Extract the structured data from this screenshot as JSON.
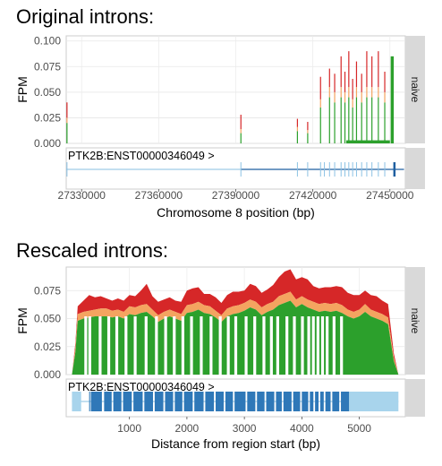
{
  "chart_data": [
    {
      "type": "area",
      "title": "Original introns:",
      "ylabel": "FPM",
      "xlabel": "Chromosome 8 position (bp)",
      "facet_label": "naive",
      "transcript_label": "PTK2B:ENST00000346049 >",
      "xlim": [
        27324000,
        27456000
      ],
      "ylim": [
        0,
        0.105
      ],
      "x_ticks": [
        27330000,
        27360000,
        27390000,
        27420000,
        27450000
      ],
      "x_tick_labels": [
        "27330000",
        "27360000",
        "27390000",
        "27420000",
        "27450000"
      ],
      "y_ticks": [
        0,
        0.025,
        0.05,
        0.075,
        0.1
      ],
      "y_tick_labels": [
        "0.000",
        "0.025",
        "0.050",
        "0.075",
        "0.100"
      ],
      "grid": true,
      "series": [
        {
          "color": "#2ca02c"
        },
        {
          "color": "#f4a460"
        },
        {
          "color": "#d62728"
        }
      ],
      "coverage_spikes": [
        {
          "x": 27324300,
          "green": 0.02,
          "orange": 0.005,
          "red": 0.015
        },
        {
          "x": 27392000,
          "green": 0.01,
          "orange": 0.004,
          "red": 0.014
        },
        {
          "x": 27414000,
          "green": 0.012,
          "orange": 0.004,
          "red": 0.008
        },
        {
          "x": 27418000,
          "green": 0.01,
          "orange": 0.003,
          "red": 0.008
        },
        {
          "x": 27423000,
          "green": 0.035,
          "orange": 0.008,
          "red": 0.022
        },
        {
          "x": 27426500,
          "green": 0.045,
          "orange": 0.01,
          "red": 0.018
        },
        {
          "x": 27428500,
          "green": 0.04,
          "orange": 0.01,
          "red": 0.018
        },
        {
          "x": 27431000,
          "green": 0.045,
          "orange": 0.01,
          "red": 0.03
        },
        {
          "x": 27432500,
          "green": 0.04,
          "orange": 0.01,
          "red": 0.02
        },
        {
          "x": 27434000,
          "green": 0.045,
          "orange": 0.01,
          "red": 0.035
        },
        {
          "x": 27435500,
          "green": 0.035,
          "orange": 0.008,
          "red": 0.02
        },
        {
          "x": 27437000,
          "green": 0.045,
          "orange": 0.01,
          "red": 0.025
        },
        {
          "x": 27439000,
          "green": 0.04,
          "orange": 0.01,
          "red": 0.018
        },
        {
          "x": 27441000,
          "green": 0.045,
          "orange": 0.01,
          "red": 0.035
        },
        {
          "x": 27443000,
          "green": 0.045,
          "orange": 0.01,
          "red": 0.03
        },
        {
          "x": 27445500,
          "green": 0.045,
          "orange": 0.01,
          "red": 0.035
        },
        {
          "x": 27448000,
          "green": 0.04,
          "orange": 0.01,
          "red": 0.02
        }
      ],
      "baseline_regions": [
        {
          "x0": 27433000,
          "x1": 27450000,
          "value": 0.003
        },
        {
          "x0": 27450300,
          "x1": 27451500,
          "value": 0.085
        }
      ],
      "transcript": {
        "start": 27324000,
        "end": 27455500,
        "exons": [
          27324300,
          27392000,
          27414000,
          27418000,
          27423000,
          27424500,
          27426500,
          27428500,
          27431000,
          27432500,
          27434000,
          27435500,
          27437000,
          27439000,
          27441000,
          27443000,
          27445500,
          27448000,
          27451500
        ],
        "thick_start": 27392000,
        "thick_end": 27451000
      }
    },
    {
      "type": "area",
      "title": "Rescaled introns:",
      "ylabel": "FPM",
      "xlabel": "Distance from region start (bp)",
      "facet_label": "naive",
      "transcript_label": "PTK2B:ENST00000346049 >",
      "xlim": [
        -100,
        5800
      ],
      "ylim": [
        0,
        0.096
      ],
      "x_ticks": [
        1000,
        2000,
        3000,
        4000,
        5000
      ],
      "x_tick_labels": [
        "1000",
        "2000",
        "3000",
        "4000",
        "5000"
      ],
      "y_ticks": [
        0,
        0.025,
        0.05,
        0.075
      ],
      "y_tick_labels": [
        "0.000",
        "0.025",
        "0.050",
        "0.075"
      ],
      "grid": true,
      "series": [
        {
          "color": "#2ca02c"
        },
        {
          "color": "#f4a460"
        },
        {
          "color": "#d62728"
        }
      ],
      "x": [
        0,
        60,
        100,
        200,
        300,
        400,
        500,
        600,
        700,
        800,
        900,
        1000,
        1100,
        1200,
        1300,
        1400,
        1500,
        1600,
        1700,
        1800,
        1900,
        2000,
        2100,
        2200,
        2300,
        2400,
        2500,
        2600,
        2700,
        2800,
        2900,
        3000,
        3100,
        3200,
        3300,
        3400,
        3500,
        3600,
        3700,
        3800,
        3900,
        4000,
        4100,
        4200,
        4300,
        4400,
        4500,
        4600,
        4700,
        4800,
        4900,
        5000,
        5100,
        5200,
        5300,
        5400,
        5500,
        5600,
        5680
      ],
      "green": [
        0,
        0.02,
        0.048,
        0.05,
        0.051,
        0.052,
        0.052,
        0.052,
        0.051,
        0.052,
        0.05,
        0.054,
        0.053,
        0.055,
        0.056,
        0.052,
        0.047,
        0.05,
        0.052,
        0.05,
        0.048,
        0.055,
        0.056,
        0.058,
        0.055,
        0.054,
        0.051,
        0.047,
        0.052,
        0.054,
        0.055,
        0.057,
        0.06,
        0.058,
        0.053,
        0.056,
        0.058,
        0.062,
        0.064,
        0.066,
        0.06,
        0.063,
        0.06,
        0.058,
        0.056,
        0.057,
        0.056,
        0.057,
        0.055,
        0.052,
        0.05,
        0.052,
        0.056,
        0.052,
        0.05,
        0.048,
        0.045,
        0.012,
        0
      ],
      "orange": [
        0,
        0.004,
        0.006,
        0.006,
        0.006,
        0.006,
        0.007,
        0.007,
        0.006,
        0.006,
        0.006,
        0.007,
        0.007,
        0.007,
        0.007,
        0.006,
        0.006,
        0.006,
        0.006,
        0.006,
        0.006,
        0.007,
        0.007,
        0.007,
        0.007,
        0.007,
        0.006,
        0.006,
        0.007,
        0.007,
        0.007,
        0.007,
        0.007,
        0.007,
        0.007,
        0.007,
        0.007,
        0.008,
        0.008,
        0.008,
        0.007,
        0.007,
        0.007,
        0.007,
        0.007,
        0.007,
        0.007,
        0.007,
        0.007,
        0.006,
        0.006,
        0.006,
        0.007,
        0.006,
        0.006,
        0.006,
        0.006,
        0.003,
        0
      ],
      "red": [
        0,
        0.004,
        0.007,
        0.01,
        0.014,
        0.011,
        0.011,
        0.009,
        0.009,
        0.01,
        0.01,
        0.01,
        0.01,
        0.013,
        0.018,
        0.012,
        0.012,
        0.011,
        0.011,
        0.01,
        0.011,
        0.013,
        0.014,
        0.013,
        0.01,
        0.011,
        0.012,
        0.011,
        0.012,
        0.013,
        0.012,
        0.011,
        0.014,
        0.014,
        0.013,
        0.013,
        0.015,
        0.017,
        0.02,
        0.02,
        0.018,
        0.017,
        0.018,
        0.014,
        0.014,
        0.014,
        0.015,
        0.015,
        0.016,
        0.015,
        0.015,
        0.013,
        0.012,
        0.013,
        0.014,
        0.012,
        0.012,
        0.004,
        0
      ],
      "intron_gaps": [
        240,
        310,
        490,
        640,
        780,
        940,
        1100,
        1290,
        1470,
        1630,
        1780,
        1930,
        2080,
        2250,
        2420,
        2580,
        2720,
        2850,
        3030,
        3180,
        3340,
        3470,
        3580,
        3740,
        3870,
        4010,
        4120,
        4200,
        4280,
        4360,
        4440,
        4560,
        4690
      ],
      "transcript": {
        "start": 0,
        "end": 5680,
        "thick_start": 240,
        "thick_end": 4820,
        "exons": [
          [
            0,
            160
          ],
          [
            300,
            310
          ],
          [
            330,
            520
          ],
          [
            560,
            690
          ],
          [
            720,
            860
          ],
          [
            890,
            1040
          ],
          [
            1070,
            1230
          ],
          [
            1260,
            1410
          ],
          [
            1440,
            1590
          ],
          [
            1620,
            1760
          ],
          [
            1790,
            1920
          ],
          [
            1950,
            2100
          ],
          [
            2130,
            2290
          ],
          [
            2320,
            2470
          ],
          [
            2500,
            2640
          ],
          [
            2670,
            2800
          ],
          [
            2830,
            3020
          ],
          [
            3050,
            3190
          ],
          [
            3220,
            3350
          ],
          [
            3380,
            3520
          ],
          [
            3550,
            3650
          ],
          [
            3680,
            3820
          ],
          [
            3850,
            3970
          ],
          [
            4000,
            4110
          ],
          [
            4140,
            4200
          ],
          [
            4230,
            4290
          ],
          [
            4320,
            4380
          ],
          [
            4410,
            4500
          ],
          [
            4530,
            4650
          ],
          [
            4680,
            5680
          ]
        ]
      }
    }
  ]
}
